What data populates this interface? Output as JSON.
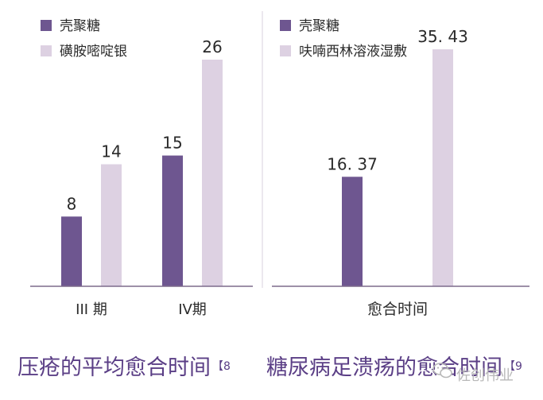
{
  "colors": {
    "dark": "#6e5690",
    "light": "#ddd1e2",
    "axis": "#7d6c8c",
    "caption": "#5b3f86",
    "text": "#2a2a2a"
  },
  "captions": {
    "left_text": "压疮的平均愈合时间",
    "left_ref": "【8",
    "right_text": "糖尿病足溃疡的愈合时间",
    "right_ref": "【9"
  },
  "watermark": {
    "text": "佐创伟业",
    "icon": "wechat-icon"
  },
  "chart_data": [
    {
      "type": "bar",
      "categories": [
        "III 期",
        "IV期"
      ],
      "series": [
        {
          "name": "壳聚糖",
          "values": [
            8,
            15
          ]
        },
        {
          "name": "磺胺嘧啶银",
          "values": [
            14,
            26
          ]
        }
      ],
      "ylim": [
        0,
        26
      ],
      "legend": "top-left",
      "grid": false
    },
    {
      "type": "bar",
      "categories": [
        "愈合时间"
      ],
      "series": [
        {
          "name": "壳聚糖",
          "values": [
            16.37
          ]
        },
        {
          "name": "呋喃西林溶液湿敷",
          "values": [
            35.43
          ]
        }
      ],
      "ylim": [
        0,
        35.43
      ],
      "legend": "top-left",
      "grid": false
    }
  ]
}
